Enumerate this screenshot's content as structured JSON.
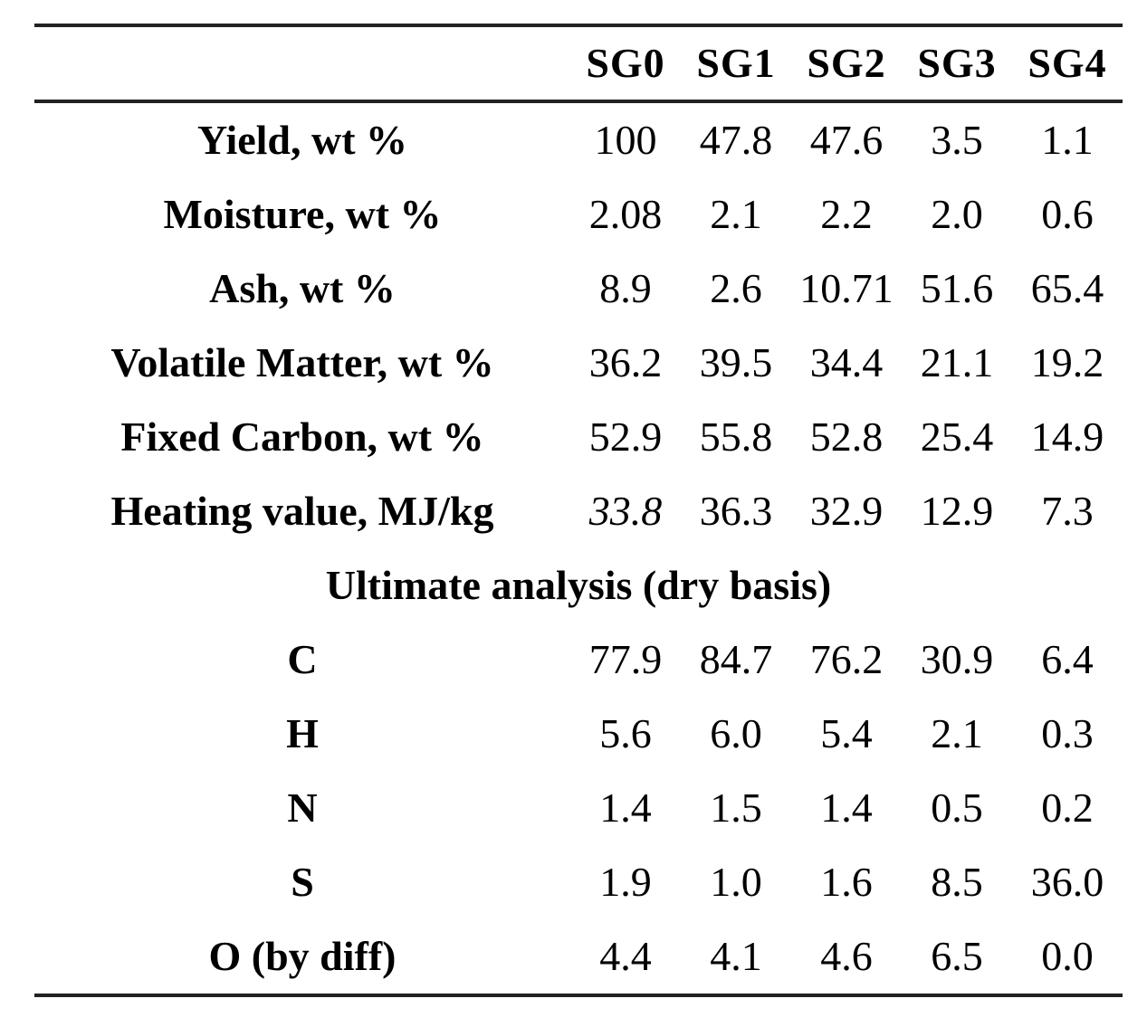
{
  "table": {
    "columns": [
      "SG0",
      "SG1",
      "SG2",
      "SG3",
      "SG4"
    ],
    "rows": [
      {
        "label": "Yield, wt %",
        "values": [
          "100",
          "47.8",
          "47.6",
          "3.5",
          "1.1"
        ]
      },
      {
        "label": "Moisture, wt %",
        "values": [
          "2.08",
          "2.1",
          "2.2",
          "2.0",
          "0.6"
        ]
      },
      {
        "label": "Ash, wt %",
        "values": [
          "8.9",
          "2.6",
          "10.71",
          "51.6",
          "65.4"
        ]
      },
      {
        "label": "Volatile Matter, wt %",
        "values": [
          "36.2",
          "39.5",
          "34.4",
          "21.1",
          "19.2"
        ]
      },
      {
        "label": "Fixed Carbon, wt %",
        "values": [
          "52.9",
          "55.8",
          "52.8",
          "25.4",
          "14.9"
        ]
      },
      {
        "label": "Heating value, MJ/kg",
        "values": [
          "33.8",
          "36.3",
          "32.9",
          "12.9",
          "7.3"
        ]
      }
    ],
    "section_header": "Ultimate analysis (dry basis)",
    "section_rows": [
      {
        "label": "C",
        "values": [
          "77.9",
          "84.7",
          "76.2",
          "30.9",
          "6.4"
        ]
      },
      {
        "label": "H",
        "values": [
          "5.6",
          "6.0",
          "5.4",
          "2.1",
          "0.3"
        ]
      },
      {
        "label": "N",
        "values": [
          "1.4",
          "1.5",
          "1.4",
          "0.5",
          "0.2"
        ]
      },
      {
        "label": "S",
        "values": [
          "1.9",
          "1.0",
          "1.6",
          "8.5",
          "36.0"
        ]
      },
      {
        "label": "O (by diff)",
        "values": [
          "4.4",
          "4.1",
          "4.6",
          "6.5",
          "0.0"
        ]
      }
    ],
    "colors": {
      "text": "#000000",
      "rule": "#222222",
      "background": "#ffffff"
    }
  }
}
